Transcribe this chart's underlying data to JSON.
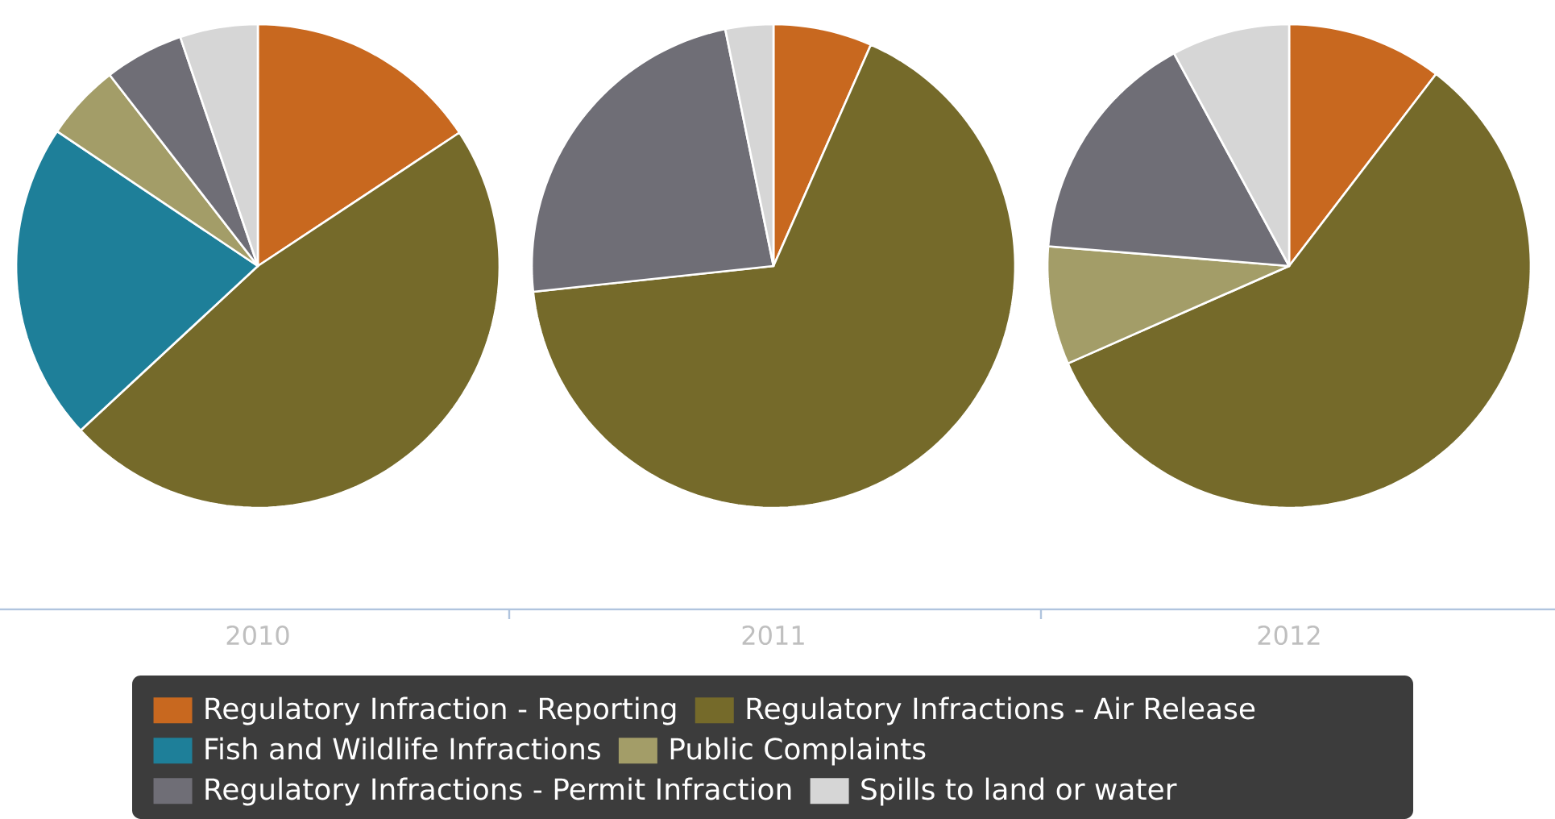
{
  "chart_data": {
    "type": "pie",
    "legend": "bottom",
    "categories": [
      "Regulatory Infraction - Reporting",
      "Regulatory Infractions - Air Release",
      "Fish and Wildlife Infractions",
      "Public Complaints",
      "Regulatory Infractions - Permit Infraction",
      "Spills to land or water"
    ],
    "colors": [
      "#c8681f",
      "#756a2a",
      "#1e7f99",
      "#a39d68",
      "#6f6e76",
      "#d6d6d6"
    ],
    "series": [
      {
        "name": "2010",
        "values": [
          15.7,
          47.4,
          21.3,
          5.1,
          5.3,
          5.2
        ]
      },
      {
        "name": "2011",
        "values": [
          6.6,
          66.7,
          0,
          0,
          23.5,
          3.2
        ]
      },
      {
        "name": "2012",
        "values": [
          10.4,
          58.0,
          0,
          7.9,
          15.8,
          7.9
        ]
      }
    ]
  }
}
